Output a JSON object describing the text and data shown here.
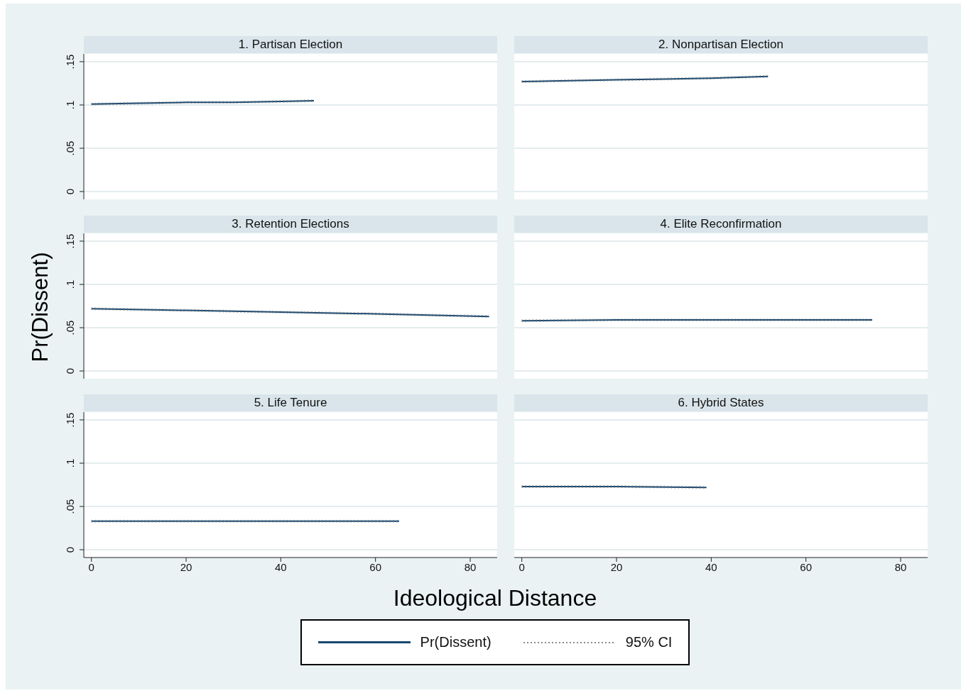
{
  "chart_data": [
    {
      "type": "line",
      "title": "1. Partisan Election",
      "x": [
        0,
        10,
        20,
        30,
        40,
        47
      ],
      "xlim": [
        -1.6,
        85.7
      ],
      "ylim": [
        -0.009,
        0.159
      ],
      "yticks": [
        0,
        {
          "value": 0.05,
          "label": ".05"
        },
        {
          "value": 0.1,
          "label": ".1"
        },
        {
          "value": 0.15,
          "label": ".15"
        }
      ],
      "grid": "y",
      "tick_labels": "y",
      "marker": "none",
      "series": [
        {
          "color": "#1a476f",
          "line_style": "solid",
          "values": [
            0.101,
            0.102,
            0.103,
            0.103,
            0.104,
            0.105
          ]
        },
        {
          "color": "#8a8a8a",
          "line_style": "dotted",
          "values": [
            0.102,
            0.103,
            0.104,
            0.104,
            0.105,
            0.106
          ]
        },
        {
          "color": "#8a8a8a",
          "line_style": "dotted",
          "values": [
            0.1,
            0.101,
            0.102,
            0.102,
            0.103,
            0.104
          ]
        }
      ]
    },
    {
      "type": "line",
      "title": "2. Nonpartisan Election",
      "x": [
        0,
        10,
        20,
        30,
        40,
        52
      ],
      "xlim": [
        -1.6,
        85.7
      ],
      "ylim": [
        -0.009,
        0.159
      ],
      "yticks": [
        0,
        0.05,
        0.1,
        0.15
      ],
      "grid": "y",
      "tick_labels": false,
      "marker": "none",
      "series": [
        {
          "color": "#1a476f",
          "line_style": "solid",
          "values": [
            0.127,
            0.128,
            0.129,
            0.13,
            0.131,
            0.133
          ]
        },
        {
          "color": "#8a8a8a",
          "line_style": "dotted",
          "values": [
            0.128,
            0.129,
            0.13,
            0.131,
            0.132,
            0.134
          ]
        },
        {
          "color": "#8a8a8a",
          "line_style": "dotted",
          "values": [
            0.126,
            0.127,
            0.128,
            0.129,
            0.13,
            0.132
          ]
        }
      ]
    },
    {
      "type": "line",
      "title": "3. Retention Elections",
      "ylabel": "Pr(Dissent)",
      "x": [
        0,
        20,
        40,
        60,
        84
      ],
      "xlim": [
        -1.6,
        85.7
      ],
      "ylim": [
        -0.009,
        0.159
      ],
      "yticks": [
        0,
        {
          "value": 0.05,
          "label": ".05"
        },
        {
          "value": 0.1,
          "label": ".1"
        },
        {
          "value": 0.15,
          "label": ".15"
        }
      ],
      "grid": "y",
      "tick_labels": "y",
      "marker": "none",
      "series": [
        {
          "color": "#1a476f",
          "line_style": "solid",
          "values": [
            0.072,
            0.07,
            0.068,
            0.066,
            0.063
          ]
        },
        {
          "color": "#8a8a8a",
          "line_style": "dotted",
          "values": [
            0.073,
            0.071,
            0.069,
            0.067,
            0.064
          ]
        },
        {
          "color": "#8a8a8a",
          "line_style": "dotted",
          "values": [
            0.071,
            0.069,
            0.067,
            0.065,
            0.062
          ]
        }
      ]
    },
    {
      "type": "line",
      "title": "4. Elite Reconfirmation",
      "x": [
        0,
        20,
        40,
        60,
        74
      ],
      "xlim": [
        -1.6,
        85.7
      ],
      "ylim": [
        -0.009,
        0.159
      ],
      "yticks": [
        0,
        0.05,
        0.1,
        0.15
      ],
      "grid": "y",
      "tick_labels": false,
      "marker": "none",
      "series": [
        {
          "color": "#1a476f",
          "line_style": "solid",
          "values": [
            0.058,
            0.059,
            0.059,
            0.059,
            0.059
          ]
        },
        {
          "color": "#8a8a8a",
          "line_style": "dotted",
          "values": [
            0.059,
            0.06,
            0.06,
            0.06,
            0.06
          ]
        },
        {
          "color": "#8a8a8a",
          "line_style": "dotted",
          "values": [
            0.057,
            0.058,
            0.058,
            0.058,
            0.058
          ]
        }
      ]
    },
    {
      "type": "line",
      "title": "5. Life Tenure",
      "xlabel": "Ideological Distance",
      "legend": "bottom",
      "x": [
        0,
        20,
        40,
        65
      ],
      "xlim": [
        -1.6,
        85.7
      ],
      "xticks": [
        0,
        20,
        40,
        60,
        80
      ],
      "ylim": [
        -0.009,
        0.159
      ],
      "yticks": [
        0,
        {
          "value": 0.05,
          "label": ".05"
        },
        {
          "value": 0.1,
          "label": ".1"
        },
        {
          "value": 0.15,
          "label": ".15"
        }
      ],
      "grid": "y",
      "marker": "none",
      "series": [
        {
          "name": "Pr(Dissent)",
          "color": "#1a476f",
          "line_style": "solid",
          "values": [
            0.033,
            0.033,
            0.033,
            0.033
          ]
        },
        {
          "name": "95% CI",
          "color": "#8a8a8a",
          "line_style": "dotted",
          "values": [
            0.034,
            0.034,
            0.034,
            0.034
          ]
        },
        {
          "color": "#8a8a8a",
          "line_style": "dotted",
          "values": [
            0.032,
            0.032,
            0.032,
            0.032
          ]
        }
      ]
    },
    {
      "type": "line",
      "title": "6. Hybrid States",
      "x": [
        0,
        20,
        39
      ],
      "xlim": [
        -1.6,
        85.7
      ],
      "xticks": [
        0,
        20,
        40,
        60,
        80
      ],
      "ylim": [
        -0.009,
        0.159
      ],
      "yticks": [
        0,
        0.05,
        0.1,
        0.15
      ],
      "grid": "y",
      "tick_labels": "x",
      "marker": "none",
      "series": [
        {
          "color": "#1a476f",
          "line_style": "solid",
          "values": [
            0.073,
            0.073,
            0.072
          ]
        },
        {
          "color": "#8a8a8a",
          "line_style": "dotted",
          "values": [
            0.074,
            0.074,
            0.073
          ]
        },
        {
          "color": "#8a8a8a",
          "line_style": "dotted",
          "values": [
            0.072,
            0.072,
            0.071
          ]
        }
      ]
    }
  ]
}
